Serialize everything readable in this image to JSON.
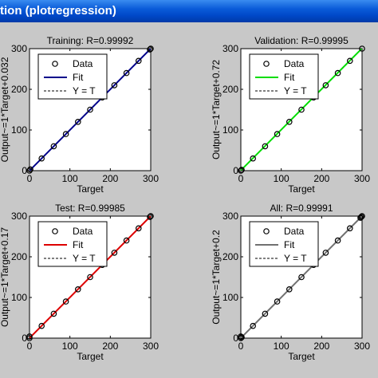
{
  "window": {
    "title": "tion (plotregression)"
  },
  "colors": {
    "titlebar": "#0a5bd8",
    "figure_bg": "#c8c8c8",
    "training_fit": "#00008b",
    "validation_fit": "#00dd00",
    "test_fit": "#dd0000",
    "all_fit": "#707070"
  },
  "legend_labels": {
    "data": "Data",
    "fit": "Fit",
    "yt": "Y = T"
  },
  "chart_data": [
    {
      "type": "scatter",
      "title": "Training: R=0.99992",
      "xlabel": "Target",
      "ylabel": "Output~=1*Target+0.032",
      "xlim": [
        0,
        300
      ],
      "ylim": [
        0,
        300
      ],
      "xticks": [
        "0",
        "100",
        "200",
        "300"
      ],
      "yticks": [
        "0",
        "100",
        "200",
        "300"
      ],
      "legend": "top-left",
      "fit_color": "#00008b",
      "fit": {
        "slope": 1,
        "intercept": 0.032
      },
      "points": [
        [
          0,
          0
        ],
        [
          2,
          3
        ],
        [
          30,
          30
        ],
        [
          60,
          60
        ],
        [
          90,
          90
        ],
        [
          120,
          120
        ],
        [
          150,
          150
        ],
        [
          180,
          180
        ],
        [
          210,
          210
        ],
        [
          240,
          240
        ],
        [
          270,
          270
        ],
        [
          298,
          298
        ],
        [
          300,
          300
        ]
      ]
    },
    {
      "type": "scatter",
      "title": "Validation: R=0.99995",
      "xlabel": "Target",
      "ylabel": "Output~=1*Target+0.72",
      "xlim": [
        0,
        300
      ],
      "ylim": [
        0,
        300
      ],
      "xticks": [
        "0",
        "100",
        "200",
        "300"
      ],
      "yticks": [
        "0",
        "100",
        "200",
        "300"
      ],
      "legend": "top-left",
      "fit_color": "#00dd00",
      "fit": {
        "slope": 1,
        "intercept": 0.72
      },
      "points": [
        [
          0,
          0
        ],
        [
          2,
          2
        ],
        [
          30,
          30
        ],
        [
          60,
          60
        ],
        [
          90,
          90
        ],
        [
          120,
          120
        ],
        [
          150,
          150
        ],
        [
          180,
          180
        ],
        [
          210,
          210
        ],
        [
          240,
          240
        ],
        [
          270,
          270
        ],
        [
          300,
          300
        ]
      ]
    },
    {
      "type": "scatter",
      "title": "Test: R=0.99985",
      "xlabel": "Target",
      "ylabel": "Output~=1*Target+0.17",
      "xlim": [
        0,
        300
      ],
      "ylim": [
        0,
        300
      ],
      "xticks": [
        "0",
        "100",
        "200",
        "300"
      ],
      "yticks": [
        "0",
        "100",
        "200",
        "300"
      ],
      "legend": "top-left",
      "fit_color": "#dd0000",
      "fit": {
        "slope": 1,
        "intercept": 0.17
      },
      "points": [
        [
          0,
          0
        ],
        [
          0,
          4
        ],
        [
          30,
          30
        ],
        [
          60,
          60
        ],
        [
          90,
          90
        ],
        [
          120,
          120
        ],
        [
          150,
          150
        ],
        [
          180,
          180
        ],
        [
          210,
          210
        ],
        [
          240,
          240
        ],
        [
          270,
          270
        ],
        [
          298,
          298
        ],
        [
          300,
          300
        ]
      ]
    },
    {
      "type": "scatter",
      "title": "All: R=0.99991",
      "xlabel": "Target",
      "ylabel": "Output~=1*Target+0.2",
      "xlim": [
        0,
        300
      ],
      "ylim": [
        0,
        300
      ],
      "xticks": [
        "0",
        "100",
        "200",
        "300"
      ],
      "yticks": [
        "0",
        "100",
        "200",
        "300"
      ],
      "legend": "top-left",
      "fit_color": "#707070",
      "fit": {
        "slope": 1,
        "intercept": 0.2
      },
      "points": [
        [
          0,
          0
        ],
        [
          0,
          4
        ],
        [
          2,
          2
        ],
        [
          30,
          30
        ],
        [
          60,
          60
        ],
        [
          90,
          90
        ],
        [
          120,
          120
        ],
        [
          150,
          150
        ],
        [
          180,
          180
        ],
        [
          210,
          210
        ],
        [
          240,
          240
        ],
        [
          270,
          270
        ],
        [
          296,
          296
        ],
        [
          298,
          298
        ],
        [
          300,
          300
        ]
      ]
    }
  ]
}
